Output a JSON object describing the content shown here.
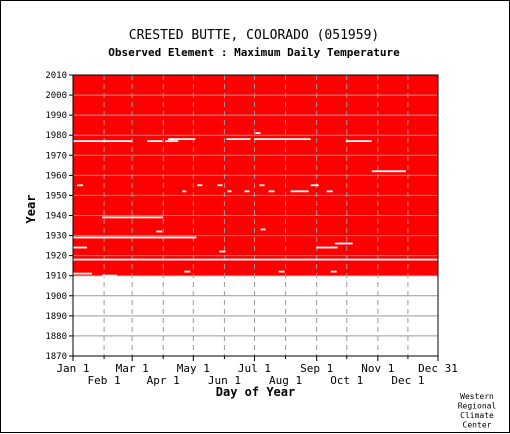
{
  "chart_data": {
    "type": "heatmap",
    "title": "CRESTED BUTTE, COLORADO   (051959)",
    "subtitle": "Observed Element : Maximum Daily Temperature",
    "xlabel": "Day of Year",
    "ylabel": "Year",
    "credit": [
      "Western",
      "Regional",
      "Climate",
      "Center"
    ],
    "x_ticks_major": [
      {
        "label": "Jan 1",
        "day": 1
      },
      {
        "label": "Mar 1",
        "day": 60
      },
      {
        "label": "May 1",
        "day": 121
      },
      {
        "label": "Jul 1",
        "day": 182
      },
      {
        "label": "Sep 1",
        "day": 244
      },
      {
        "label": "Nov 1",
        "day": 305
      },
      {
        "label": "Dec 31",
        "day": 365
      }
    ],
    "x_ticks_minor": [
      {
        "label": "Feb 1",
        "day": 32
      },
      {
        "label": "Apr 1",
        "day": 91
      },
      {
        "label": "Jun 1",
        "day": 152
      },
      {
        "label": "Aug 1",
        "day": 213
      },
      {
        "label": "Oct 1",
        "day": 274
      },
      {
        "label": "Dec 1",
        "day": 335
      }
    ],
    "y_ticks": [
      1870,
      1880,
      1890,
      1900,
      1910,
      1920,
      1930,
      1940,
      1950,
      1960,
      1970,
      1980,
      1990,
      2000,
      2010
    ],
    "xlim": [
      1,
      365
    ],
    "ylim": [
      1870,
      2010
    ],
    "data_color": "#ff0000",
    "missing_color": "#ffffff",
    "grid": true,
    "record": {
      "start_year": 1910,
      "end_year": 2010
    },
    "missing_segments": [
      {
        "year": 1977,
        "start_day": 1,
        "end_day": 60
      },
      {
        "year": 1977,
        "start_day": 75,
        "end_day": 90
      },
      {
        "year": 1977,
        "start_day": 93,
        "end_day": 106
      },
      {
        "year": 1978,
        "start_day": 96,
        "end_day": 123
      },
      {
        "year": 1978,
        "start_day": 154,
        "end_day": 178
      },
      {
        "year": 1978,
        "start_day": 182,
        "end_day": 238
      },
      {
        "year": 1981,
        "start_day": 183,
        "end_day": 188
      },
      {
        "year": 1977,
        "start_day": 273,
        "end_day": 299
      },
      {
        "year": 1962,
        "start_day": 299,
        "end_day": 333
      },
      {
        "year": 1955,
        "start_day": 5,
        "end_day": 11
      },
      {
        "year": 1955,
        "start_day": 125,
        "end_day": 130
      },
      {
        "year": 1955,
        "start_day": 145,
        "end_day": 150
      },
      {
        "year": 1955,
        "start_day": 187,
        "end_day": 192
      },
      {
        "year": 1955,
        "start_day": 238,
        "end_day": 246
      },
      {
        "year": 1952,
        "start_day": 110,
        "end_day": 114
      },
      {
        "year": 1952,
        "start_day": 155,
        "end_day": 159
      },
      {
        "year": 1952,
        "start_day": 172,
        "end_day": 177
      },
      {
        "year": 1952,
        "start_day": 196,
        "end_day": 202
      },
      {
        "year": 1952,
        "start_day": 218,
        "end_day": 236
      },
      {
        "year": 1952,
        "start_day": 254,
        "end_day": 260
      },
      {
        "year": 1939,
        "start_day": 30,
        "end_day": 91
      },
      {
        "year": 1933,
        "start_day": 188,
        "end_day": 193
      },
      {
        "year": 1932,
        "start_day": 84,
        "end_day": 90
      },
      {
        "year": 1929,
        "start_day": 1,
        "end_day": 124
      },
      {
        "year": 1926,
        "start_day": 262,
        "end_day": 280
      },
      {
        "year": 1924,
        "start_day": 1,
        "end_day": 15
      },
      {
        "year": 1924,
        "start_day": 244,
        "end_day": 265
      },
      {
        "year": 1922,
        "start_day": 147,
        "end_day": 153
      },
      {
        "year": 1918,
        "start_day": 1,
        "end_day": 365
      },
      {
        "year": 1911,
        "start_day": 1,
        "end_day": 20
      },
      {
        "year": 1912,
        "start_day": 112,
        "end_day": 118
      },
      {
        "year": 1912,
        "start_day": 206,
        "end_day": 212
      },
      {
        "year": 1912,
        "start_day": 258,
        "end_day": 264
      },
      {
        "year": 1910,
        "start_day": 30,
        "end_day": 45
      }
    ]
  }
}
